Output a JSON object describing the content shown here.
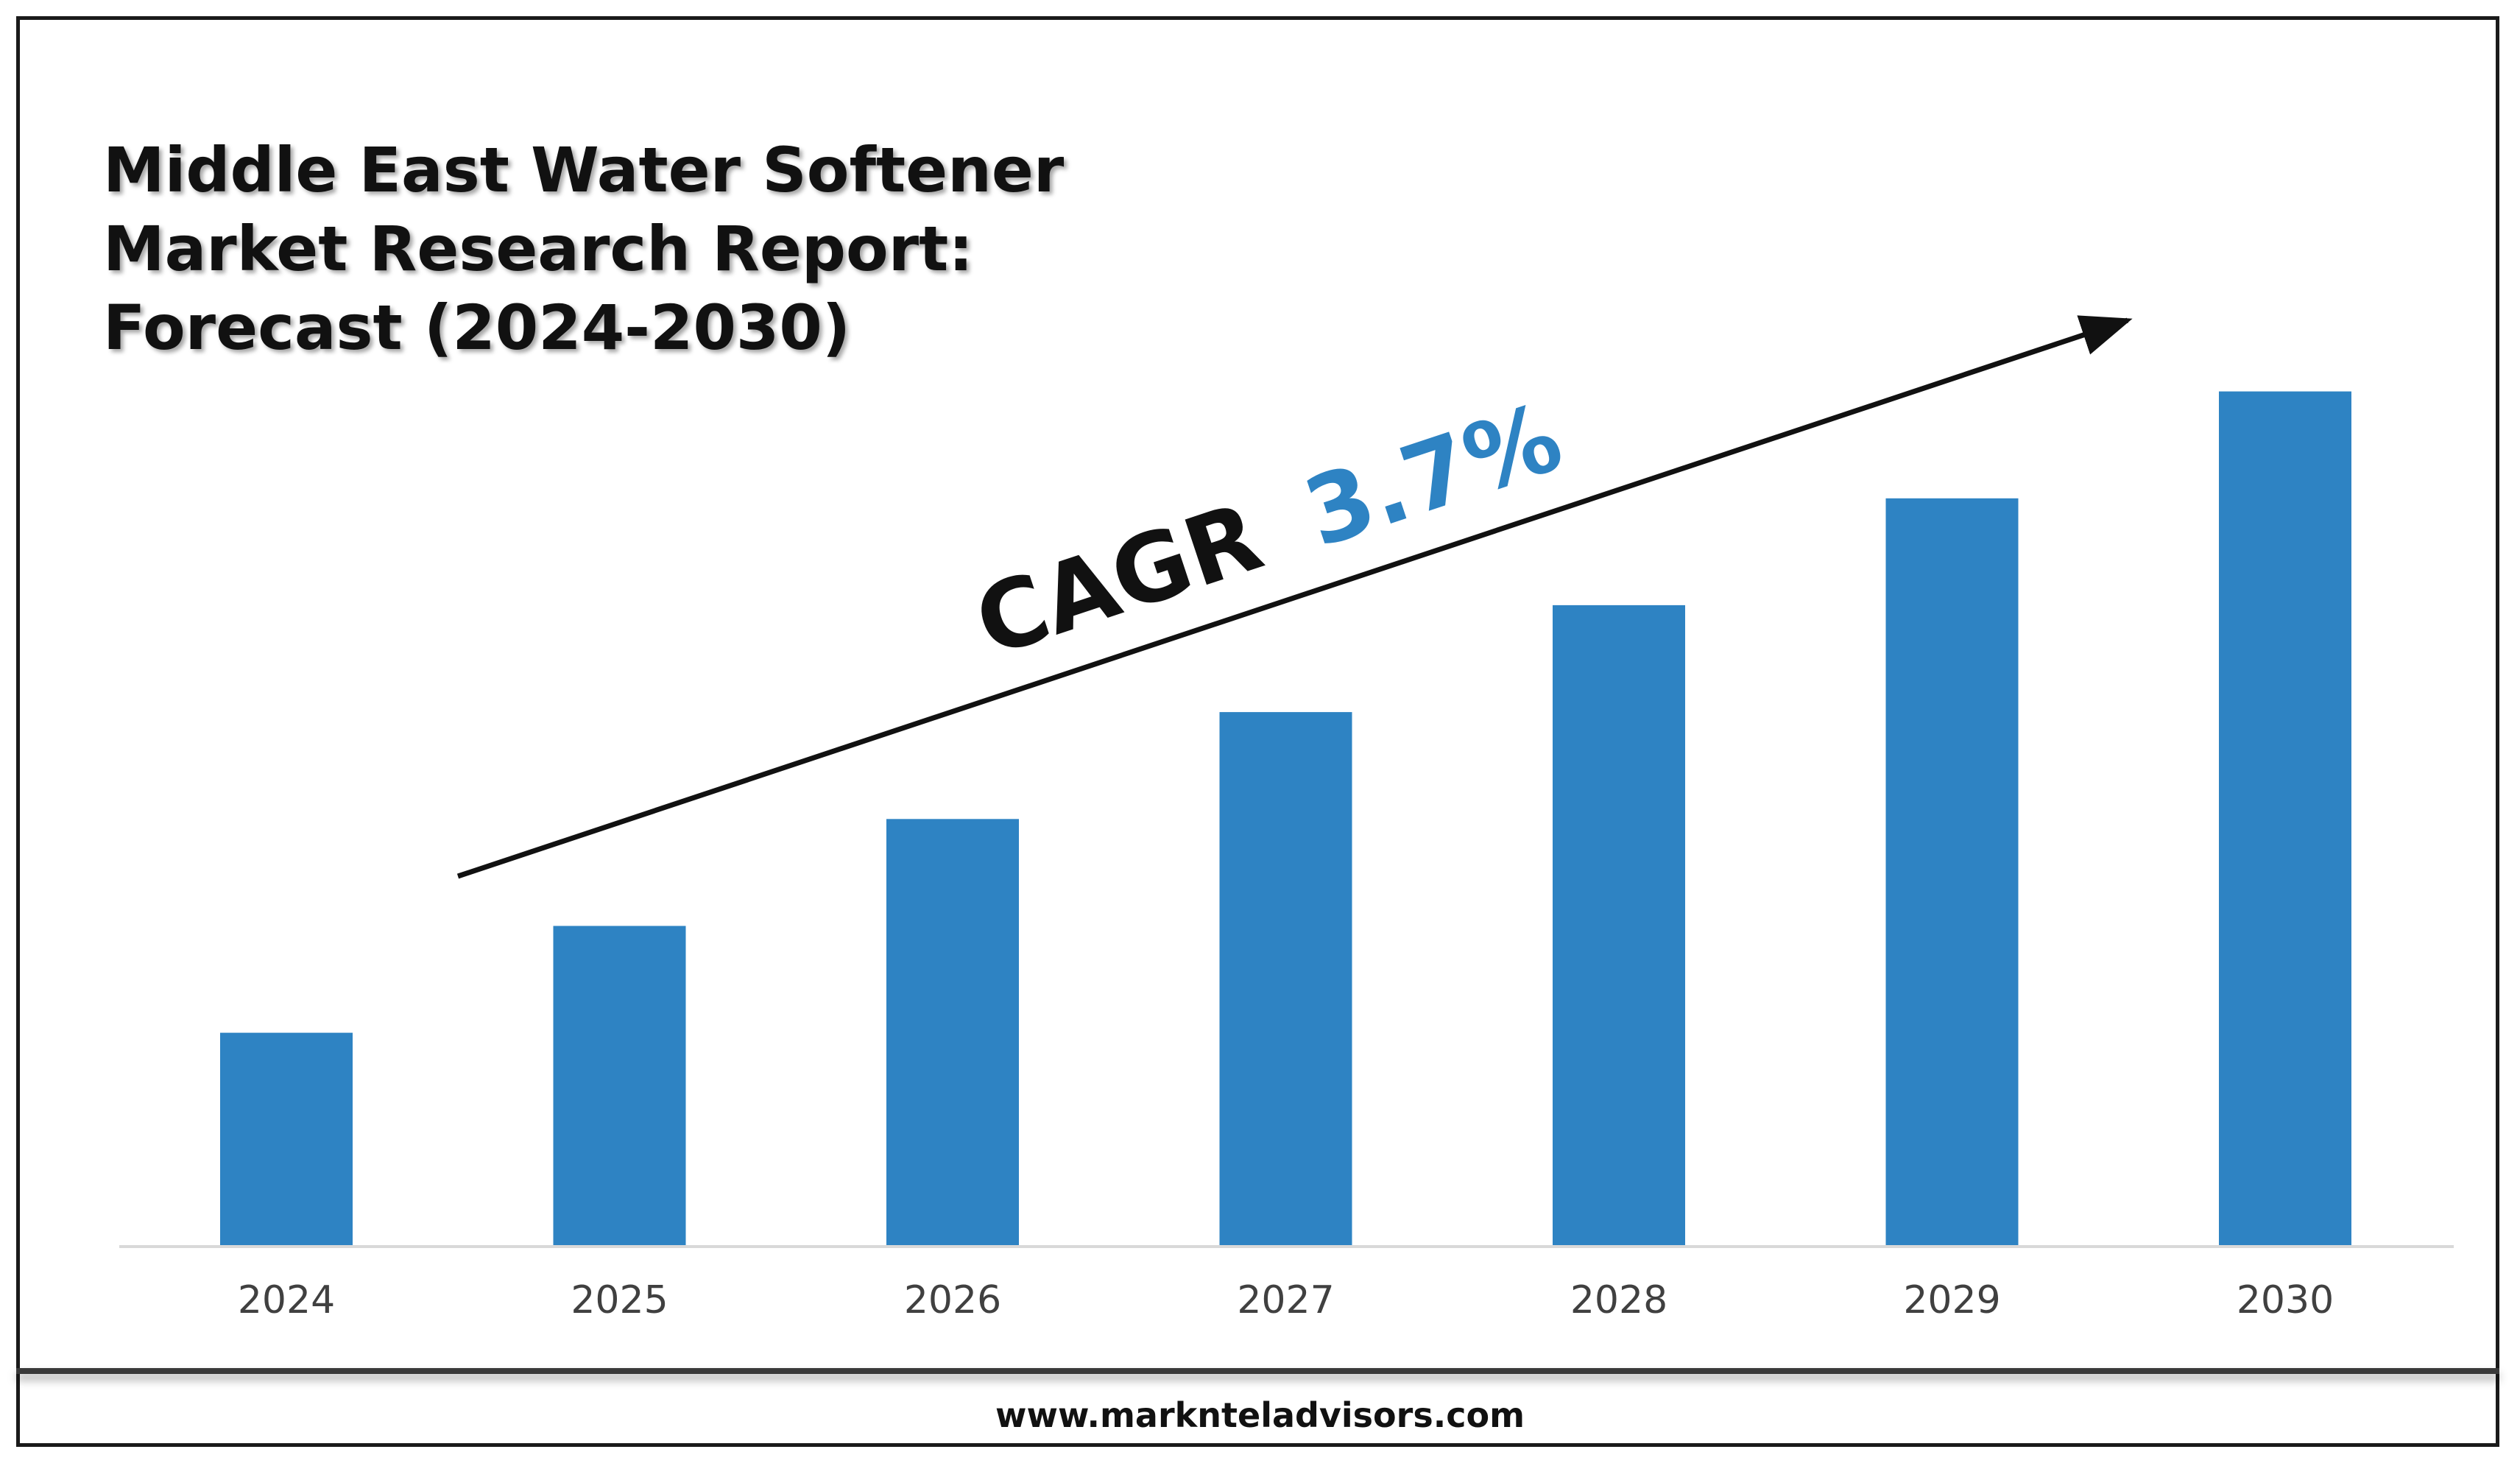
{
  "title_lines": [
    "Middle East Water Softener",
    "Market Research Report:",
    "Forecast (2024-2030)"
  ],
  "cagr": {
    "label": "CAGR",
    "value": "3.7%",
    "value_color": "#2E83C3",
    "label_color": "#111111"
  },
  "footer": {
    "url": "www.marknteladvisors.com"
  },
  "colors": {
    "bar": "#2E83C3",
    "axis": "#d9d9d9",
    "tick_label": "#404040",
    "arrow": "#111111"
  },
  "chart_data": {
    "type": "bar",
    "title": "Middle East Water Softener Market Research Report: Forecast (2024-2030)",
    "categories": [
      "2024",
      "2025",
      "2026",
      "2027",
      "2028",
      "2029",
      "2030"
    ],
    "values": [
      2,
      3,
      4,
      5,
      6,
      7,
      8
    ],
    "ylim": [
      0,
      8.5
    ],
    "xlabel": "",
    "ylabel": "",
    "grid": false,
    "legend": "none",
    "annotation": "CAGR 3.7%"
  }
}
